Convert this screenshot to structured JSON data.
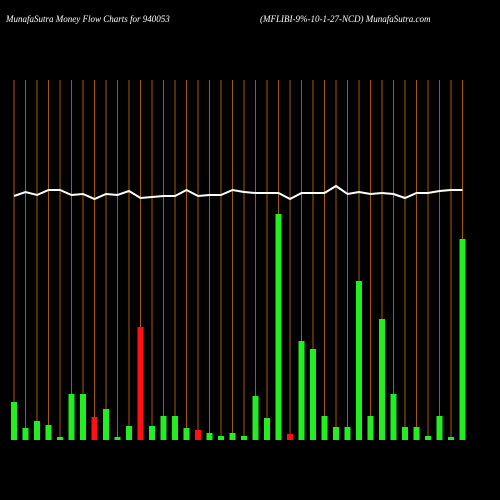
{
  "chart_data": {
    "type": "bar-line",
    "title": "MunafaSutra  Money Flow  Charts for 940053",
    "subtitle": "(MFLIBI-9%-10-1-27-NCD) MunafaSutra.com",
    "ylim": [
      0,
      360
    ],
    "grid": true,
    "grid_color": "#a65a00",
    "bars": {
      "values": [
        38,
        12,
        19,
        15,
        3,
        46,
        46,
        23,
        31,
        3,
        14,
        113,
        14,
        24,
        24,
        12,
        10,
        7,
        4,
        7,
        4,
        44,
        22,
        226,
        6,
        99,
        91,
        24,
        13,
        13,
        159,
        24,
        121,
        46,
        13,
        13,
        4,
        24,
        3,
        201
      ],
      "colors": [
        "#22ee22",
        "#22ee22",
        "#22ee22",
        "#22ee22",
        "#22ee22",
        "#22ee22",
        "#22ee22",
        "#ff1111",
        "#22ee22",
        "#22ee22",
        "#22ee22",
        "#ff1111",
        "#22ee22",
        "#22ee22",
        "#22ee22",
        "#22ee22",
        "#ff1111",
        "#22ee22",
        "#22ee22",
        "#22ee22",
        "#22ee22",
        "#22ee22",
        "#22ee22",
        "#22ee22",
        "#ff1111",
        "#22ee22",
        "#22ee22",
        "#22ee22",
        "#22ee22",
        "#22ee22",
        "#22ee22",
        "#22ee22",
        "#22ee22",
        "#22ee22",
        "#22ee22",
        "#22ee22",
        "#22ee22",
        "#22ee22",
        "#22ee22",
        "#22ee22"
      ]
    },
    "line": {
      "color": "#ffffff",
      "values": [
        244,
        248,
        245,
        250,
        250,
        245,
        246,
        241,
        246,
        245,
        249,
        242,
        243,
        244,
        244,
        250,
        244,
        245,
        245,
        250,
        248,
        247,
        247,
        247,
        241,
        247,
        247,
        247,
        254,
        246,
        248,
        246,
        247,
        246,
        242,
        247,
        247,
        249,
        250,
        250
      ]
    }
  }
}
